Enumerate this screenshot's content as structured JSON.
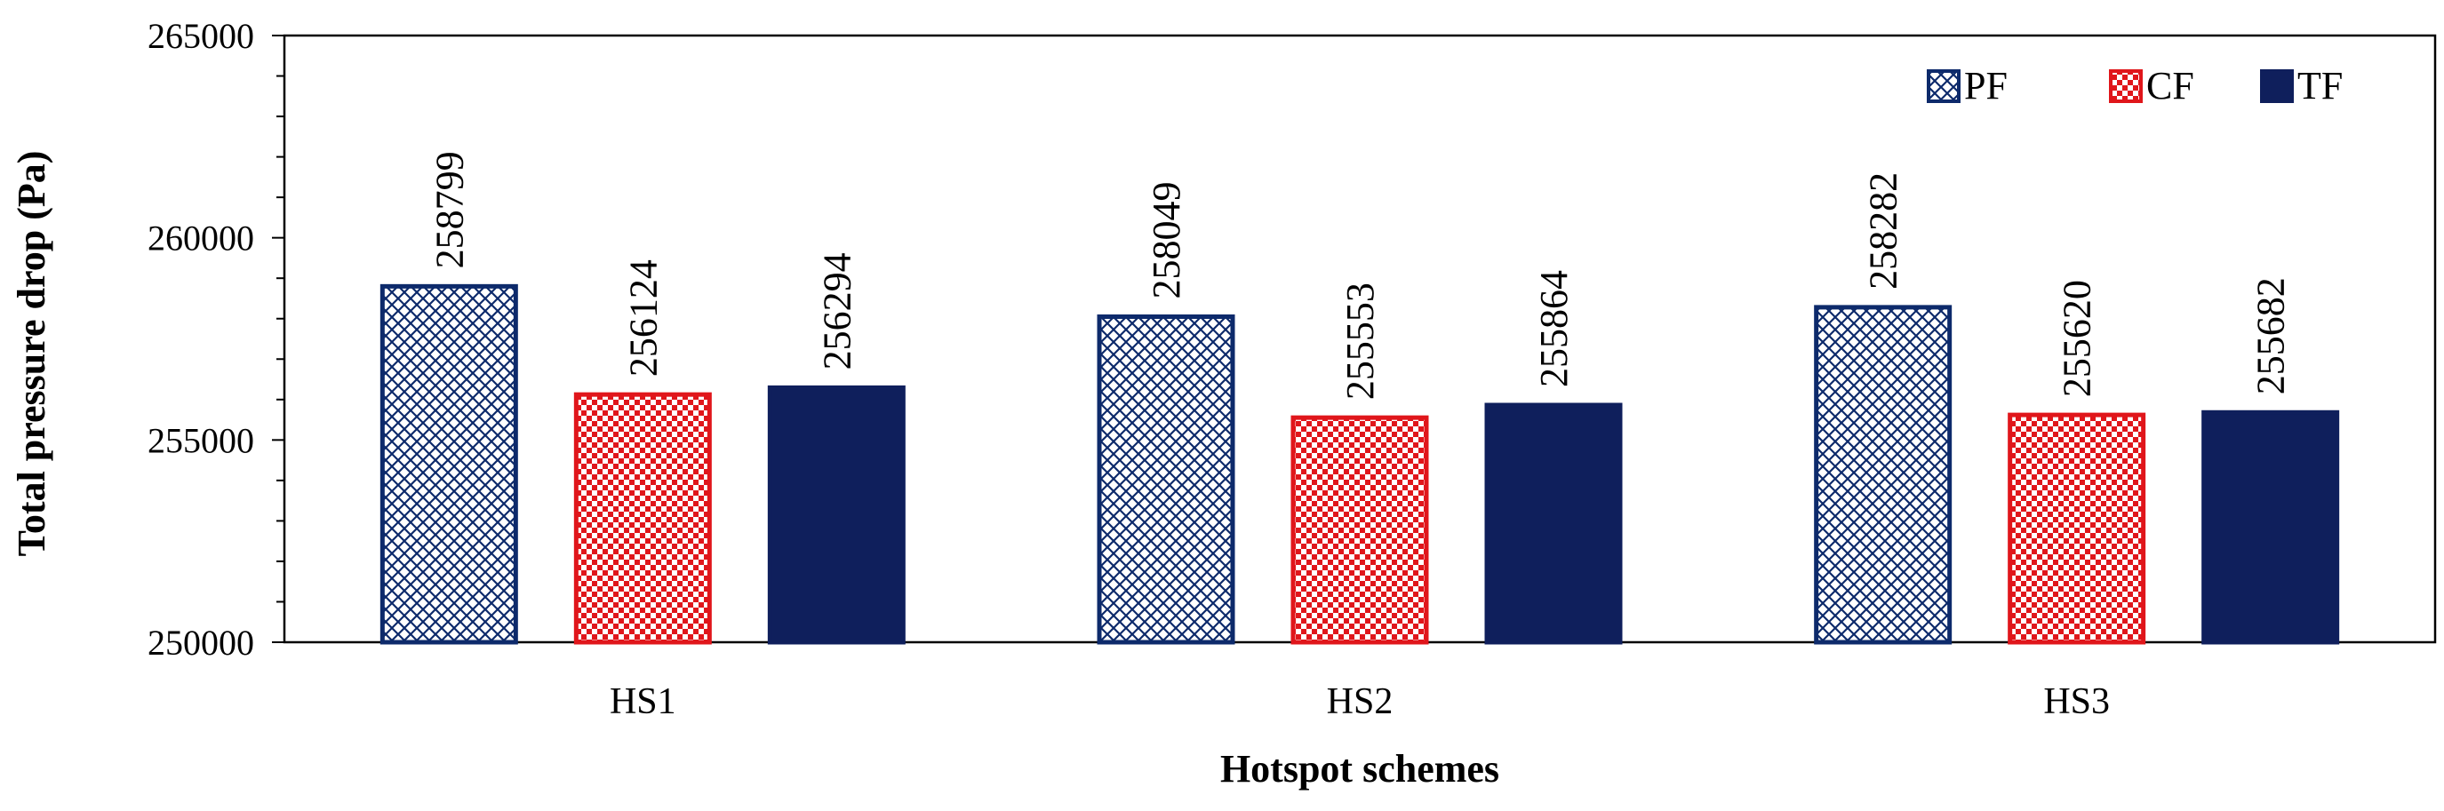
{
  "chart_data": {
    "type": "bar",
    "categories": [
      "HS1",
      "HS2",
      "HS3"
    ],
    "series": [
      {
        "name": "PF",
        "values": [
          258799,
          258049,
          258282
        ],
        "color": "#0d2a6b",
        "fill": "crosshatch"
      },
      {
        "name": "CF",
        "values": [
          256124,
          255553,
          255620
        ],
        "color": "#e0161b",
        "fill": "checker"
      },
      {
        "name": "TF",
        "values": [
          256294,
          255864,
          255682
        ],
        "color": "#0f1f5c",
        "fill": "solid"
      }
    ],
    "data_labels": [
      [
        "258799",
        "256124",
        "256294"
      ],
      [
        "258049",
        "255553",
        "255864"
      ],
      [
        "258282",
        "255620",
        "255682"
      ]
    ],
    "yticks": [
      "250000",
      "255000",
      "260000",
      "265000"
    ],
    "ylim": [
      250000,
      265000
    ],
    "ylabel": "Total pressure drop (Pa)",
    "xlabel": "Hotspot schemes",
    "legend_position": "top-right",
    "grid": false
  }
}
